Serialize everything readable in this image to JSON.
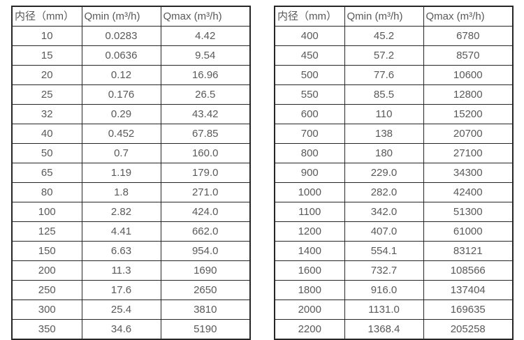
{
  "page": {
    "background_color": "#ffffff",
    "text_color": "#595959",
    "border_color": "#262626"
  },
  "tables": [
    {
      "id": "left",
      "headers": [
        "内径（mm）",
        "Qmin (m³/h)",
        "Qmax (m³/h)"
      ],
      "rows": [
        [
          "10",
          "0.0283",
          "4.42"
        ],
        [
          "15",
          "0.0636",
          "9.54"
        ],
        [
          "20",
          "0.12",
          "16.96"
        ],
        [
          "25",
          "0.176",
          "26.5"
        ],
        [
          "32",
          "0.29",
          "43.42"
        ],
        [
          "40",
          "0.452",
          "67.85"
        ],
        [
          "50",
          "0.7",
          "160.0"
        ],
        [
          "65",
          "1.19",
          "179.0"
        ],
        [
          "80",
          "1.8",
          "271.0"
        ],
        [
          "100",
          "2.82",
          "424.0"
        ],
        [
          "125",
          "4.41",
          "662.0"
        ],
        [
          "150",
          "6.63",
          "954.0"
        ],
        [
          "200",
          "11.3",
          "1690"
        ],
        [
          "250",
          "17.6",
          "2650"
        ],
        [
          "300",
          "25.4",
          "3810"
        ],
        [
          "350",
          "34.6",
          "5190"
        ]
      ]
    },
    {
      "id": "right",
      "headers": [
        "内径（mm）",
        "Qmin (m³/h)",
        "Qmax (m³/h)"
      ],
      "rows": [
        [
          "400",
          "45.2",
          "6780"
        ],
        [
          "450",
          "57.2",
          "8570"
        ],
        [
          "500",
          "77.6",
          "10600"
        ],
        [
          "550",
          "85.5",
          "12800"
        ],
        [
          "600",
          "110",
          "15200"
        ],
        [
          "700",
          "138",
          "20700"
        ],
        [
          "800",
          "180",
          "27100"
        ],
        [
          "900",
          "229.0",
          "34300"
        ],
        [
          "1000",
          "282.0",
          "42400"
        ],
        [
          "1100",
          "342.0",
          "51300"
        ],
        [
          "1200",
          "407.0",
          "61000"
        ],
        [
          "1400",
          "554.1",
          "83121"
        ],
        [
          "1600",
          "732.7",
          "108566"
        ],
        [
          "1800",
          "916.0",
          "137404"
        ],
        [
          "2000",
          "1131.0",
          "169635"
        ],
        [
          "2200",
          "1368.4",
          "205258"
        ]
      ]
    }
  ]
}
